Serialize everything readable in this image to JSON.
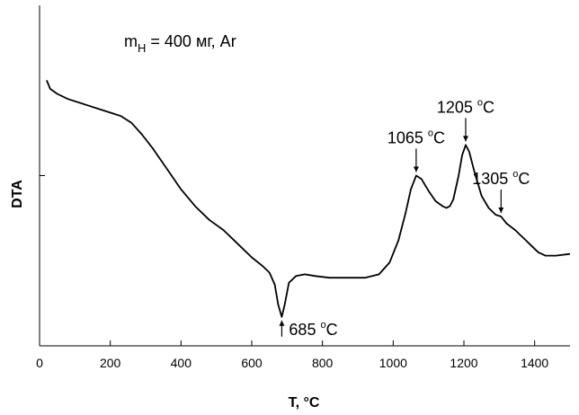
{
  "chart_data": {
    "type": "line",
    "title": "",
    "condition_label": {
      "main": "m",
      "sub": "Н",
      "rest": " = 400 мг, Ar"
    },
    "xlabel": "T, °C",
    "ylabel": "DTA",
    "xlim": [
      0,
      1500
    ],
    "x_ticks": [
      0,
      200,
      400,
      600,
      800,
      1000,
      1200,
      1400
    ],
    "y_ticks_labeled": false,
    "grid": false,
    "series": [
      {
        "name": "",
        "points": [
          [
            20,
            0.78
          ],
          [
            30,
            0.755
          ],
          [
            50,
            0.74
          ],
          [
            80,
            0.725
          ],
          [
            110,
            0.715
          ],
          [
            140,
            0.705
          ],
          [
            170,
            0.695
          ],
          [
            200,
            0.685
          ],
          [
            230,
            0.675
          ],
          [
            260,
            0.655
          ],
          [
            290,
            0.62
          ],
          [
            320,
            0.58
          ],
          [
            360,
            0.52
          ],
          [
            400,
            0.46
          ],
          [
            440,
            0.41
          ],
          [
            480,
            0.37
          ],
          [
            520,
            0.34
          ],
          [
            560,
            0.3
          ],
          [
            600,
            0.26
          ],
          [
            630,
            0.235
          ],
          [
            650,
            0.215
          ],
          [
            665,
            0.18
          ],
          [
            675,
            0.12
          ],
          [
            685,
            0.085
          ],
          [
            693,
            0.12
          ],
          [
            705,
            0.185
          ],
          [
            725,
            0.205
          ],
          [
            750,
            0.21
          ],
          [
            780,
            0.205
          ],
          [
            820,
            0.2
          ],
          [
            870,
            0.2
          ],
          [
            920,
            0.2
          ],
          [
            960,
            0.21
          ],
          [
            990,
            0.245
          ],
          [
            1015,
            0.31
          ],
          [
            1035,
            0.39
          ],
          [
            1050,
            0.46
          ],
          [
            1065,
            0.5
          ],
          [
            1080,
            0.49
          ],
          [
            1100,
            0.455
          ],
          [
            1120,
            0.425
          ],
          [
            1140,
            0.41
          ],
          [
            1150,
            0.405
          ],
          [
            1160,
            0.41
          ],
          [
            1170,
            0.43
          ],
          [
            1185,
            0.5
          ],
          [
            1195,
            0.56
          ],
          [
            1205,
            0.59
          ],
          [
            1215,
            0.57
          ],
          [
            1230,
            0.51
          ],
          [
            1250,
            0.44
          ],
          [
            1270,
            0.405
          ],
          [
            1290,
            0.385
          ],
          [
            1305,
            0.38
          ],
          [
            1320,
            0.36
          ],
          [
            1345,
            0.34
          ],
          [
            1370,
            0.315
          ],
          [
            1390,
            0.295
          ],
          [
            1410,
            0.275
          ],
          [
            1430,
            0.265
          ],
          [
            1460,
            0.265
          ],
          [
            1500,
            0.27
          ]
        ]
      }
    ],
    "annotations": [
      {
        "x": 685,
        "text": "685",
        "unit": "C",
        "degree": "o",
        "arrow": "up"
      },
      {
        "x": 1065,
        "text": "1065",
        "unit": "C",
        "degree": "o",
        "arrow": "down"
      },
      {
        "x": 1205,
        "text": "1205",
        "unit": "C",
        "degree": "o",
        "arrow": "down"
      },
      {
        "x": 1305,
        "text": "1305",
        "unit": "C",
        "degree": "o",
        "arrow": "down"
      }
    ],
    "colors": {
      "line": "#000000",
      "background": "#ffffff"
    }
  }
}
